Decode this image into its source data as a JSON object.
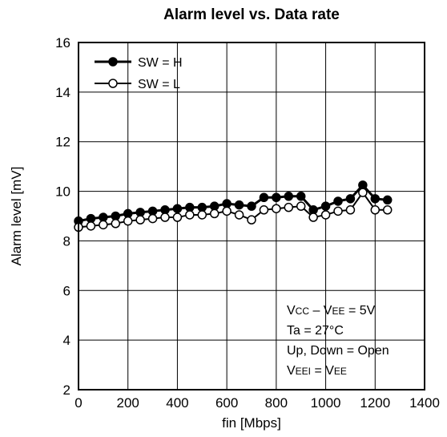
{
  "chart_data": {
    "type": "line",
    "title": "Alarm level vs. Data rate",
    "xlabel": "fin [Mbps]",
    "ylabel": "Alarm level [mV]",
    "xlim": [
      0,
      1400
    ],
    "ylim": [
      2,
      16
    ],
    "xticks": [
      0,
      200,
      400,
      600,
      800,
      1000,
      1200,
      1400
    ],
    "yticks": [
      2,
      4,
      6,
      8,
      10,
      12,
      14,
      16
    ],
    "grid": true,
    "legend_position": "top-left",
    "series": [
      {
        "name": "SW = H",
        "marker": "filled-circle",
        "x": [
          0,
          50,
          100,
          150,
          200,
          250,
          300,
          350,
          400,
          450,
          500,
          550,
          600,
          650,
          700,
          750,
          800,
          850,
          900,
          950,
          1000,
          1050,
          1100,
          1150,
          1200,
          1250
        ],
        "y": [
          8.8,
          8.9,
          8.95,
          9.0,
          9.1,
          9.15,
          9.2,
          9.25,
          9.3,
          9.35,
          9.35,
          9.4,
          9.5,
          9.45,
          9.4,
          9.75,
          9.75,
          9.8,
          9.8,
          9.25,
          9.4,
          9.6,
          9.7,
          10.25,
          9.7,
          9.65
        ]
      },
      {
        "name": "SW = L",
        "marker": "open-circle",
        "x": [
          0,
          50,
          100,
          150,
          200,
          250,
          300,
          350,
          400,
          450,
          500,
          550,
          600,
          650,
          700,
          750,
          800,
          850,
          900,
          950,
          1000,
          1050,
          1100,
          1150,
          1200,
          1250
        ],
        "y": [
          8.55,
          8.6,
          8.65,
          8.7,
          8.8,
          8.85,
          8.9,
          8.95,
          8.95,
          9.05,
          9.05,
          9.1,
          9.2,
          9.05,
          8.85,
          9.25,
          9.3,
          9.35,
          9.4,
          8.95,
          9.05,
          9.2,
          9.25,
          9.95,
          9.25,
          9.25
        ]
      }
    ],
    "annotation_lines": [
      {
        "main": "V",
        "sub": "CC",
        "mid": " – V",
        "sub2": "EE",
        "tail": " = 5V"
      },
      {
        "main": "Ta = 27°C"
      },
      {
        "main": "Up, Down = Open"
      },
      {
        "main": "V",
        "sub": "EEI",
        "mid": " = V",
        "sub2": "EE",
        "tail": ""
      }
    ]
  }
}
